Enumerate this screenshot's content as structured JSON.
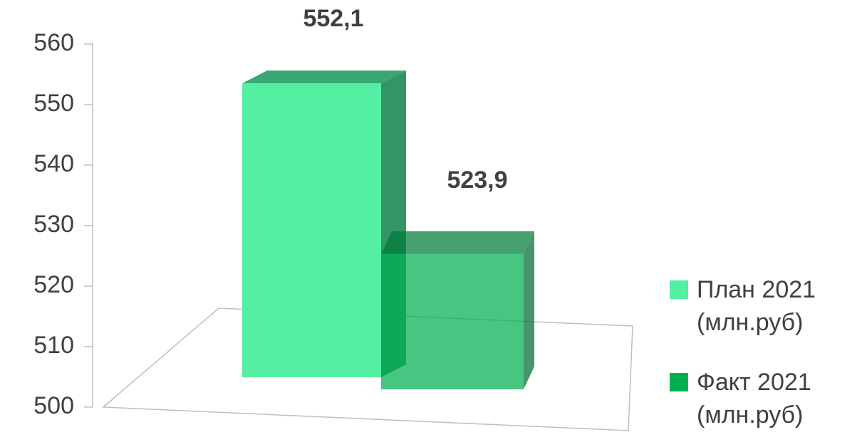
{
  "chart_data": {
    "type": "bar3d",
    "categories": [
      null
    ],
    "series": [
      {
        "name": "План 2021 (млн.руб)",
        "color": "#55efa3",
        "values": [
          552.1
        ],
        "value_labels": [
          "552,1"
        ]
      },
      {
        "name": "Факт 2021 (млн.руб)",
        "color": "#00b050",
        "values": [
          523.9
        ],
        "value_labels": [
          "523,9"
        ]
      }
    ],
    "ylim": [
      500,
      560
    ],
    "yticks": [
      500,
      510,
      520,
      530,
      540,
      550,
      560
    ],
    "legend": "right"
  }
}
